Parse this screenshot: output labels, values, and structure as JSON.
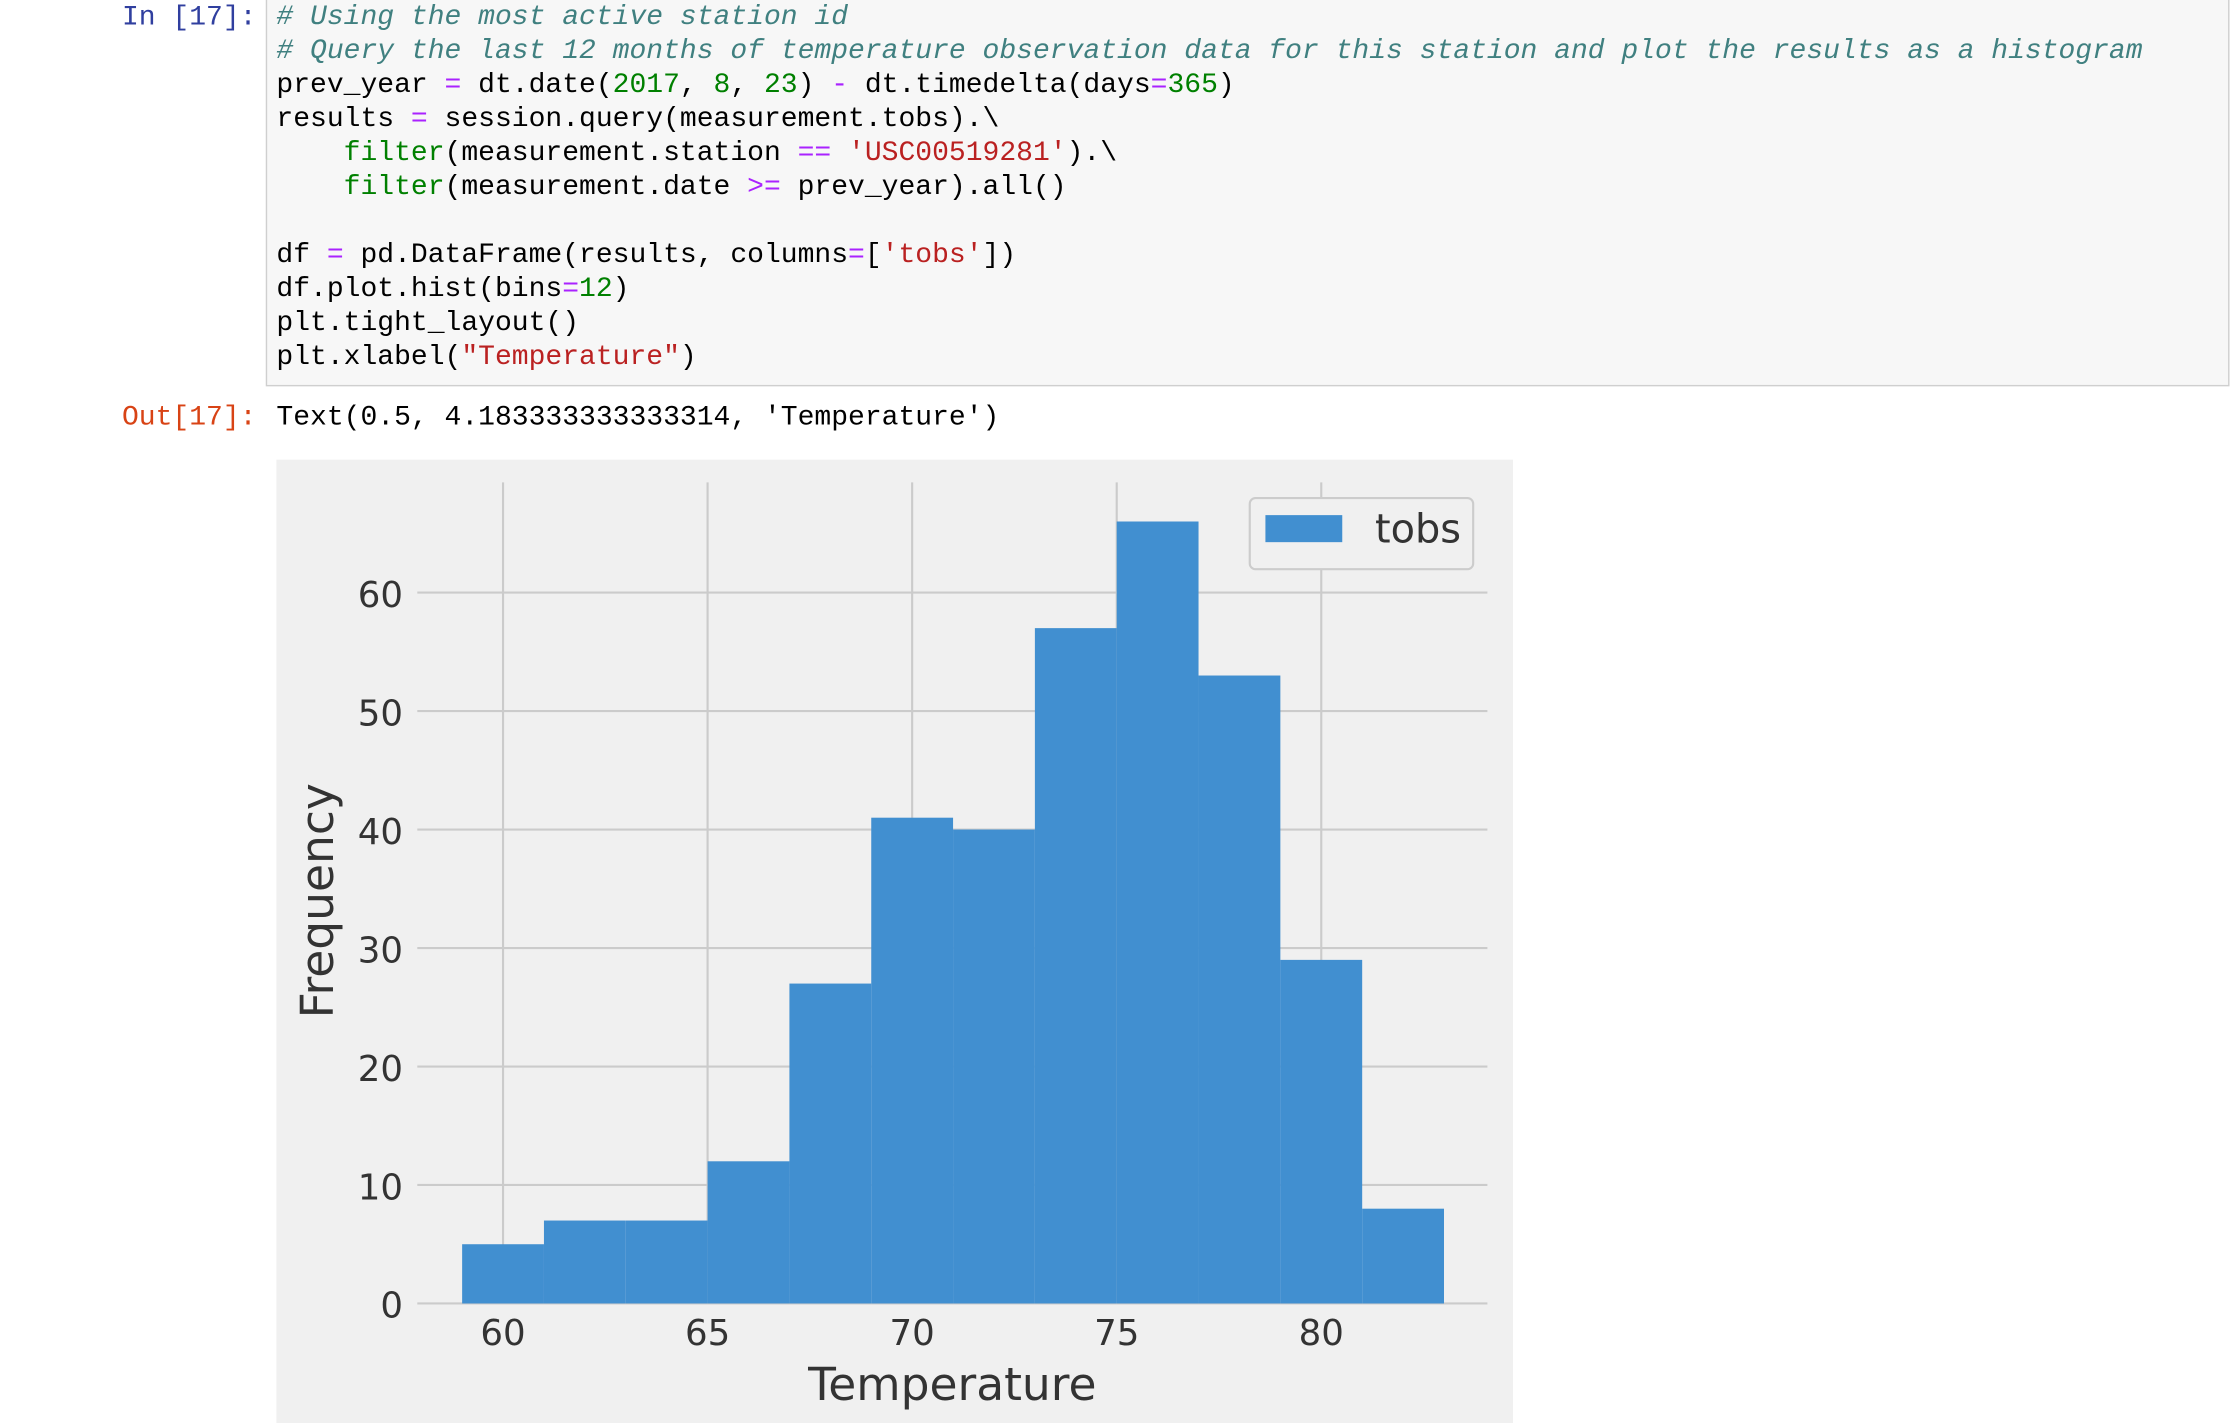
{
  "cell": {
    "in_prompt": "In [17]:",
    "code_blocks": [
      [
        [
          {
            "text": "# Using the most active station id",
            "color": "#408080",
            "style": "italic"
          }
        ],
        [
          {
            "text": "# Query the last 12 months of temperature observation data for this station and plot the results as a histogram",
            "color": "#408080",
            "style": "italic"
          }
        ],
        [
          {
            "text": "prev_year "
          },
          {
            "text": "=",
            "color": "#aa22ff"
          },
          {
            "text": " dt.date("
          },
          {
            "text": "2017",
            "color": "#008000"
          },
          {
            "text": ", "
          },
          {
            "text": "8",
            "color": "#008000"
          },
          {
            "text": ", "
          },
          {
            "text": "23",
            "color": "#008000"
          },
          {
            "text": ") "
          },
          {
            "text": "-",
            "color": "#aa22ff"
          },
          {
            "text": " dt.timedelta(days"
          },
          {
            "text": "=",
            "color": "#aa22ff"
          },
          {
            "text": "365",
            "color": "#008000"
          },
          {
            "text": ")"
          }
        ],
        [
          {
            "text": "results "
          },
          {
            "text": "=",
            "color": "#aa22ff"
          },
          {
            "text": " session.query(measurement.tobs).\\"
          }
        ],
        [
          {
            "text": "    "
          },
          {
            "text": "filter",
            "color": "#008000"
          },
          {
            "text": "(measurement.station "
          },
          {
            "text": "==",
            "color": "#aa22ff"
          },
          {
            "text": " "
          },
          {
            "text": "'USC00519281'",
            "color": "#ba2121"
          },
          {
            "text": ").\\"
          }
        ],
        [
          {
            "text": "    "
          },
          {
            "text": "filter",
            "color": "#008000"
          },
          {
            "text": "(measurement.date "
          },
          {
            "text": ">=",
            "color": "#aa22ff"
          },
          {
            "text": " prev_year).all()"
          }
        ]
      ],
      [
        [
          {
            "text": "df "
          },
          {
            "text": "=",
            "color": "#aa22ff"
          },
          {
            "text": " pd.DataFrame(results, columns"
          },
          {
            "text": "=",
            "color": "#aa22ff"
          },
          {
            "text": "["
          },
          {
            "text": "'tobs'",
            "color": "#ba2121"
          },
          {
            "text": "])"
          }
        ],
        [
          {
            "text": "df.plot.hist(bins"
          },
          {
            "text": "=",
            "color": "#aa22ff"
          },
          {
            "text": "12",
            "color": "#008000"
          },
          {
            "text": ")"
          }
        ],
        [
          {
            "text": "plt.tight_layout()"
          }
        ],
        [
          {
            "text": "plt.xlabel("
          },
          {
            "text": "\"Temperature\"",
            "color": "#ba2121"
          },
          {
            "text": ")"
          }
        ]
      ]
    ],
    "out_prompt": "Out[17]:",
    "output": "Text(0.5, 4.183333333333314, 'Temperature')"
  },
  "chart_data": {
    "type": "histogram",
    "xlabel": "Temperature",
    "ylabel": "Frequency",
    "bins": [
      59,
      61,
      63,
      65,
      67,
      69,
      71,
      73,
      75,
      77,
      79,
      81,
      83
    ],
    "series": [
      {
        "name": "tobs",
        "color": "#418fd0",
        "values": [
          5,
          7,
          7,
          12,
          27,
          41,
          40,
          57,
          66,
          53,
          29,
          8
        ]
      }
    ],
    "xlim": [
      57.8,
      84.2
    ],
    "ylim": [
      0,
      69.3
    ],
    "xticks": [
      60,
      65,
      70,
      75,
      80
    ],
    "yticks": [
      0,
      10,
      20,
      30,
      40,
      50,
      60
    ],
    "grid": true,
    "legend": "upper right"
  }
}
